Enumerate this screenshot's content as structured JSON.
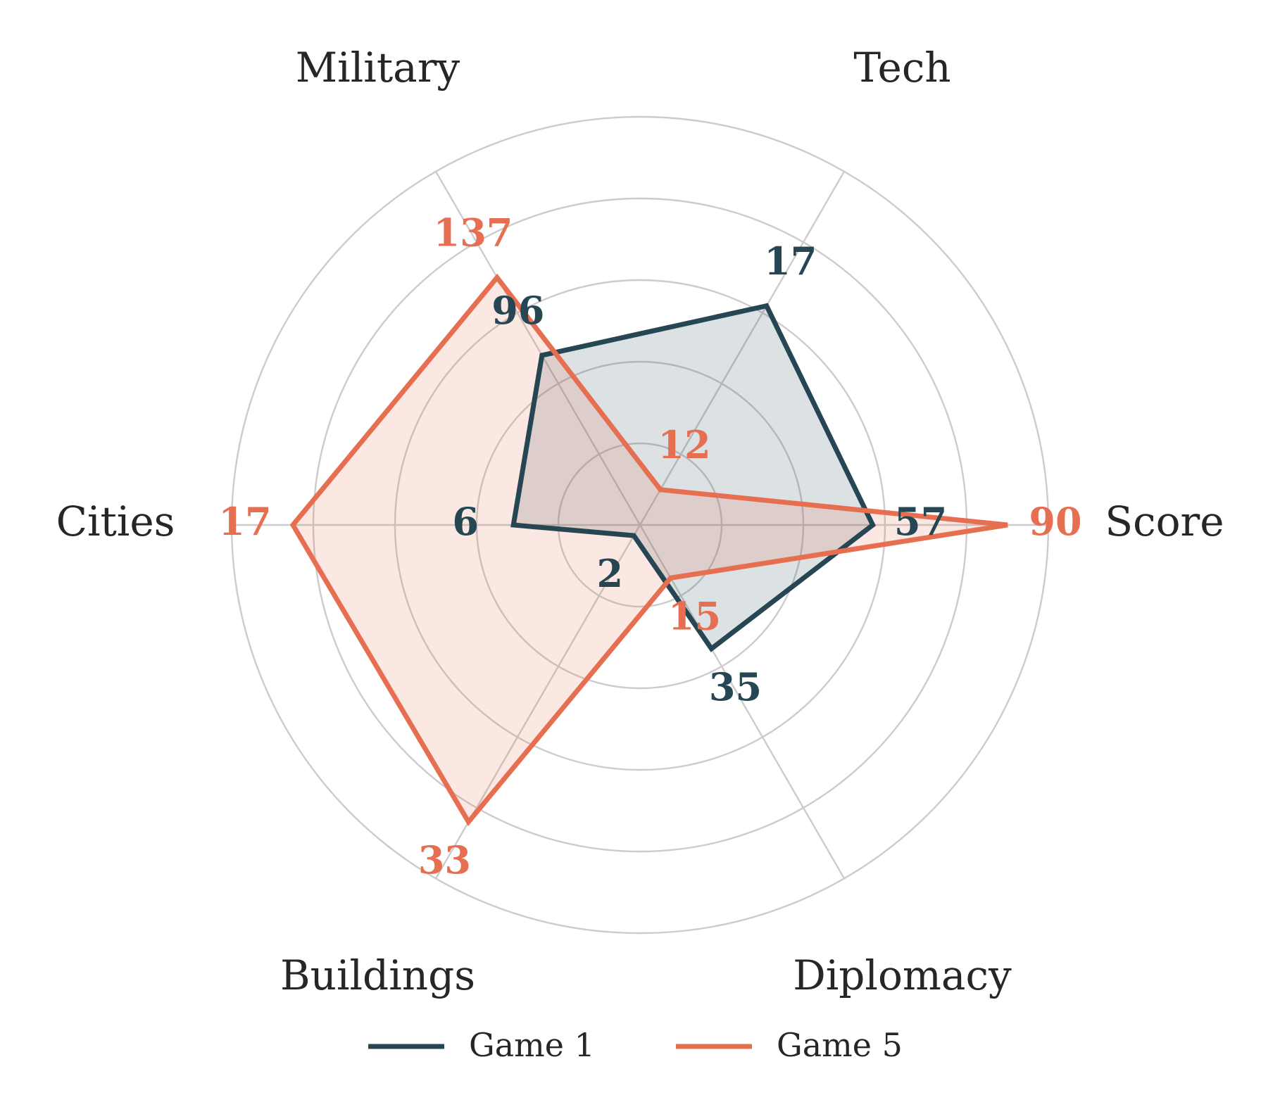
{
  "chart_data": {
    "type": "radar",
    "axes": [
      "Score",
      "Tech",
      "Military",
      "Cities",
      "Buildings",
      "Diplomacy"
    ],
    "series": [
      {
        "name": "Game 1",
        "color": "#264653",
        "values": [
          57,
          17,
          96,
          6,
          2,
          35
        ],
        "normalized": [
          0.57,
          0.62,
          0.48,
          0.31,
          0.03,
          0.35
        ]
      },
      {
        "name": "Game 5",
        "color": "#E76F51",
        "values": [
          90,
          12,
          137,
          17,
          33,
          15
        ],
        "normalized": [
          0.9,
          0.1,
          0.7,
          0.85,
          0.84,
          0.15
        ]
      }
    ],
    "grid": true,
    "grid_rings": 5,
    "legend_position": "bottom"
  }
}
